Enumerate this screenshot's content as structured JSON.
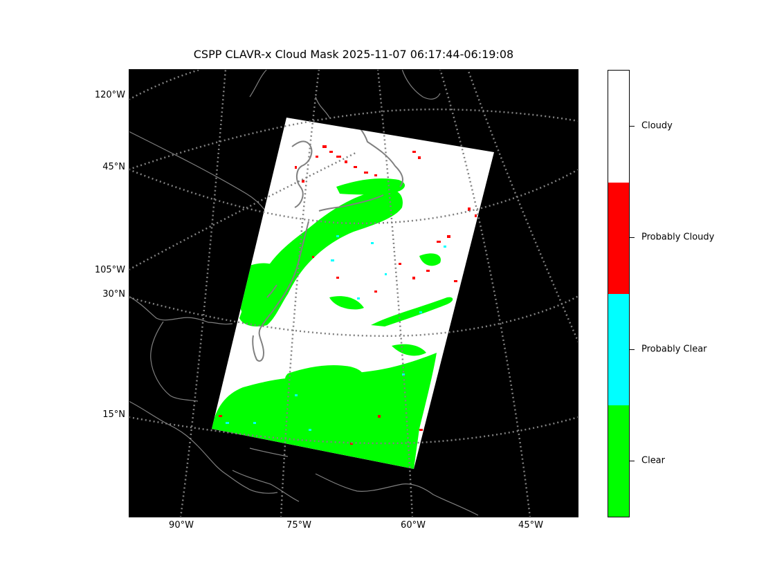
{
  "title": "CSPP CLAVR-x Cloud Mask 2025-11-07 06:17:44-06:19:08",
  "map": {
    "background_color": "#000000",
    "coastline_color": "#808080",
    "gridline_style": "dotted gray",
    "swath_main_color": "#ffffff",
    "left_labels": [
      "120°W",
      "45°N",
      "105°W",
      "30°N",
      "15°N"
    ],
    "bottom_labels": [
      "90°W",
      "75°W",
      "60°W",
      "45°W"
    ]
  },
  "colorbar": {
    "categories": [
      {
        "label": "Cloudy",
        "color": "#ffffff"
      },
      {
        "label": "Probably Cloudy",
        "color": "#ff0000"
      },
      {
        "label": "Probably Clear",
        "color": "#00ffff"
      },
      {
        "label": "Clear",
        "color": "#00ff00"
      }
    ]
  }
}
